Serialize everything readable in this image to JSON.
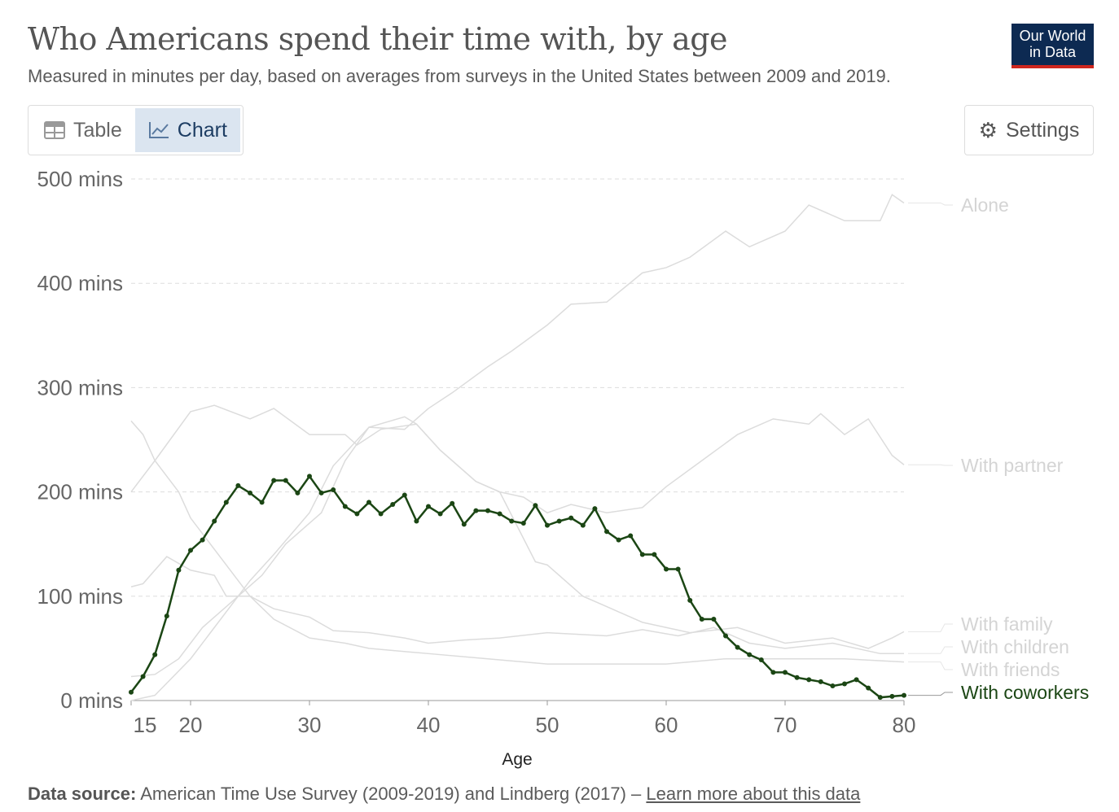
{
  "header": {
    "title": "Who Americans spend their time with, by age",
    "subtitle": "Measured in minutes per day, based on averages from surveys in the United States between 2009 and 2019.",
    "logo_line1": "Our World",
    "logo_line2": "in Data"
  },
  "tabs": {
    "table": "Table",
    "chart": "Chart",
    "active": "chart"
  },
  "settings_label": "Settings",
  "footer": {
    "source_label": "Data source:",
    "source_text": "American Time Use Survey (2009-2019) and Lindberg (2017) – ",
    "link": "Learn more about this data"
  },
  "colors": {
    "highlight": "#1b4614",
    "muted": "#dcdcdc",
    "label_muted": "#d4d4d4"
  },
  "chart_data": {
    "type": "line",
    "xlabel": "Age",
    "ylabel": "",
    "xlim": [
      15,
      80
    ],
    "ylim": [
      0,
      500
    ],
    "xticks": [
      15,
      20,
      30,
      40,
      50,
      60,
      70,
      80
    ],
    "yticks": [
      {
        "v": 0,
        "label": "0 mins"
      },
      {
        "v": 100,
        "label": "100 mins"
      },
      {
        "v": 200,
        "label": "200 mins"
      },
      {
        "v": 300,
        "label": "300 mins"
      },
      {
        "v": 400,
        "label": "400 mins"
      },
      {
        "v": 500,
        "label": "500 mins"
      }
    ],
    "grid": "horizontal-dashed",
    "legend": "right-end-labels",
    "series": [
      {
        "name": "Alone",
        "highlight": false,
        "x": [
          15,
          17,
          20,
          22,
          25,
          27,
          30,
          32,
          35,
          38,
          40,
          42,
          45,
          47,
          50,
          52,
          55,
          58,
          60,
          62,
          65,
          67,
          70,
          72,
          75,
          78,
          79,
          80
        ],
        "y": [
          0,
          5,
          40,
          70,
          115,
          140,
          180,
          225,
          262,
          260,
          280,
          295,
          320,
          335,
          360,
          380,
          382,
          410,
          415,
          425,
          450,
          435,
          450,
          475,
          460,
          460,
          485,
          477
        ]
      },
      {
        "name": "With partner",
        "highlight": false,
        "x": [
          15,
          17,
          20,
          22,
          25,
          27,
          30,
          33,
          34,
          36,
          39,
          41,
          44,
          46,
          48,
          50,
          52,
          55,
          58,
          60,
          63,
          66,
          69,
          72,
          73,
          75,
          77,
          79,
          80
        ],
        "y": [
          200,
          230,
          277,
          283,
          270,
          280,
          255,
          255,
          245,
          260,
          265,
          240,
          210,
          200,
          195,
          180,
          188,
          180,
          185,
          205,
          230,
          255,
          270,
          265,
          275,
          255,
          270,
          235,
          226
        ]
      },
      {
        "name": "With family",
        "highlight": false,
        "x": [
          15,
          17,
          19,
          21,
          24,
          26,
          28,
          31,
          33,
          35,
          38,
          39,
          41,
          44,
          46,
          49,
          50,
          53,
          55,
          58,
          62,
          66,
          70,
          74,
          77,
          79,
          80
        ],
        "y": [
          23,
          25,
          40,
          70,
          100,
          120,
          150,
          180,
          230,
          262,
          272,
          265,
          240,
          210,
          200,
          133,
          130,
          100,
          90,
          75,
          65,
          70,
          55,
          60,
          50,
          60,
          66
        ]
      },
      {
        "name": "With children",
        "highlight": false,
        "x": [
          15,
          16,
          18,
          20,
          22,
          23,
          25,
          27,
          30,
          32,
          35,
          38,
          40,
          43,
          46,
          50,
          55,
          58,
          61,
          64,
          67,
          70,
          74,
          78,
          80
        ],
        "y": [
          109,
          112,
          138,
          125,
          120,
          100,
          100,
          88,
          80,
          67,
          65,
          60,
          55,
          58,
          60,
          65,
          62,
          68,
          62,
          70,
          55,
          50,
          55,
          45,
          45
        ]
      },
      {
        "name": "With friends",
        "highlight": false,
        "x": [
          15,
          16,
          17,
          19,
          20,
          23,
          25,
          27,
          30,
          33,
          35,
          40,
          45,
          50,
          55,
          60,
          65,
          70,
          75,
          80
        ],
        "y": [
          268,
          255,
          230,
          200,
          175,
          130,
          100,
          78,
          60,
          55,
          50,
          45,
          40,
          35,
          35,
          35,
          40,
          40,
          40,
          37
        ]
      },
      {
        "name": "With coworkers",
        "highlight": true,
        "x": [
          15,
          16,
          17,
          18,
          19,
          20,
          21,
          22,
          23,
          24,
          25,
          26,
          27,
          28,
          29,
          30,
          31,
          32,
          33,
          34,
          35,
          36,
          37,
          38,
          39,
          40,
          41,
          42,
          43,
          44,
          45,
          46,
          47,
          48,
          49,
          50,
          51,
          52,
          53,
          54,
          55,
          56,
          57,
          58,
          59,
          60,
          61,
          62,
          63,
          64,
          65,
          66,
          67,
          68,
          69,
          70,
          71,
          72,
          73,
          74,
          75,
          76,
          77,
          78,
          79,
          80
        ],
        "y": [
          8,
          23,
          44,
          81,
          125,
          144,
          154,
          172,
          190,
          206,
          199,
          190,
          211,
          211,
          199,
          215,
          199,
          202,
          186,
          179,
          190,
          179,
          188,
          197,
          172,
          186,
          179,
          189,
          169,
          182,
          182,
          179,
          172,
          170,
          187,
          168,
          172,
          175,
          168,
          184,
          162,
          154,
          158,
          140,
          140,
          126,
          126,
          96,
          78,
          78,
          62,
          51,
          44,
          39,
          27,
          27,
          22,
          20,
          18,
          14,
          16,
          20,
          12,
          3,
          4,
          5
        ]
      }
    ],
    "end_labels": [
      {
        "series": "Alone",
        "value": 477
      },
      {
        "series": "With partner",
        "value": 226
      },
      {
        "series": "With family",
        "value": 66
      },
      {
        "series": "With children",
        "value": 45
      },
      {
        "series": "With friends",
        "value": 37
      },
      {
        "series": "With coworkers",
        "value": 5
      }
    ]
  }
}
